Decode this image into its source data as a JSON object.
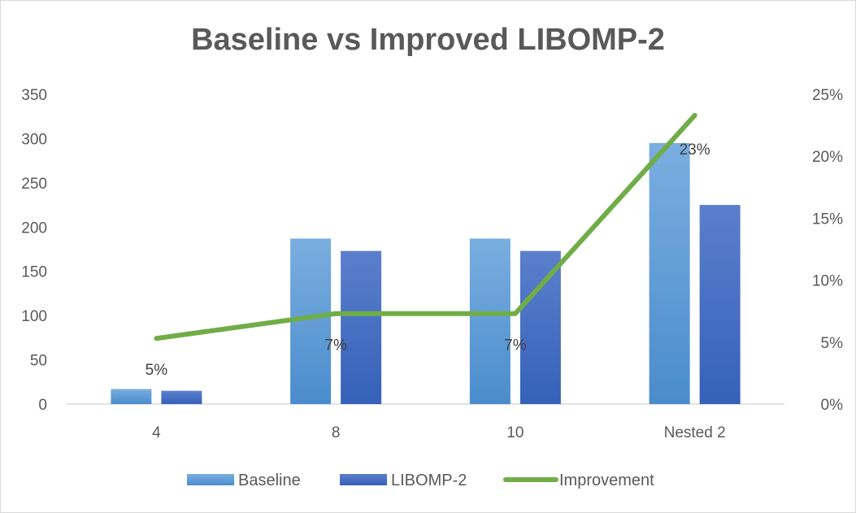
{
  "chart_data": {
    "type": "bar",
    "title": "Baseline vs Improved LIBOMP-2",
    "categories": [
      "4",
      "8",
      "10",
      "Nested 2"
    ],
    "series": [
      {
        "name": "Baseline",
        "type": "bar",
        "axis": "left",
        "values": [
          17,
          187,
          187,
          295
        ],
        "color": "#5b9bd5"
      },
      {
        "name": "LIBOMP-2",
        "type": "bar",
        "axis": "left",
        "values": [
          15,
          173,
          173,
          225
        ],
        "color": "#4472c4"
      },
      {
        "name": "Improvement",
        "type": "line",
        "axis": "right",
        "values": [
          5.3,
          7.3,
          7.3,
          23.3
        ],
        "color": "#70ad47"
      }
    ],
    "data_labels": [
      "5%",
      "7%",
      "7%",
      "23%"
    ],
    "y_left": {
      "min": 0,
      "max": 350,
      "ticks": [
        "0",
        "50",
        "100",
        "150",
        "200",
        "250",
        "300",
        "350"
      ]
    },
    "y_right": {
      "min": 0,
      "max": 25,
      "ticks": [
        "0%",
        "5%",
        "10%",
        "15%",
        "20%",
        "25%"
      ]
    },
    "legend_position": "bottom",
    "grid": false
  }
}
